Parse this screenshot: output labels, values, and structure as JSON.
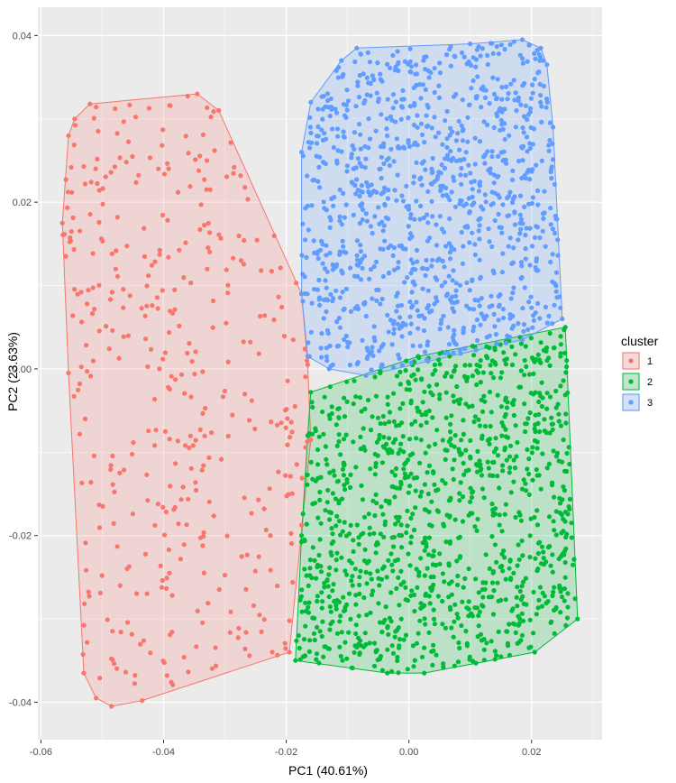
{
  "chart_data": {
    "type": "scatter",
    "title": "",
    "xlabel": "PC1 (40.61%)",
    "ylabel": "PC2 (23.63%)",
    "xlim": [
      -0.0605,
      0.0315
    ],
    "ylim": [
      -0.0445,
      0.0434
    ],
    "x_ticks": [
      -0.06,
      -0.04,
      -0.02,
      0.0,
      0.02
    ],
    "x_tick_labels": [
      "-0.06",
      "-0.04",
      "-0.02",
      "0.00",
      "0.02"
    ],
    "y_ticks": [
      -0.04,
      -0.02,
      0.0,
      0.02,
      0.04
    ],
    "y_tick_labels": [
      "-0.04",
      "-0.02",
      "0.00",
      "0.02",
      "0.04"
    ],
    "grid": true,
    "legend": {
      "title": "cluster",
      "position": "right",
      "entries": [
        "1",
        "2",
        "3"
      ]
    },
    "series": [
      {
        "name": "1",
        "color": "#F8766D",
        "count": 400,
        "hull": [
          [
            -0.0485,
            -0.0405
          ],
          [
            -0.0435,
            -0.0398
          ],
          [
            -0.0195,
            -0.034
          ],
          [
            -0.016,
            -0.0085
          ],
          [
            -0.0165,
            0.0005
          ],
          [
            -0.0175,
            0.009
          ],
          [
            -0.031,
            0.031
          ],
          [
            -0.0345,
            0.033
          ],
          [
            -0.052,
            0.0318
          ],
          [
            -0.0545,
            0.03
          ],
          [
            -0.0555,
            0.028
          ],
          [
            -0.0565,
            0.0175
          ],
          [
            -0.0555,
            -0.0005
          ],
          [
            -0.053,
            -0.0365
          ],
          [
            -0.051,
            -0.0395
          ]
        ]
      },
      {
        "name": "2",
        "color": "#00BA38",
        "count": 1150,
        "hull": [
          [
            -0.0185,
            -0.035
          ],
          [
            -0.0035,
            -0.0365
          ],
          [
            0.0025,
            -0.0365
          ],
          [
            0.0205,
            -0.034
          ],
          [
            0.0275,
            -0.03
          ],
          [
            0.0255,
            0.005
          ],
          [
            0.0015,
            0.0015
          ],
          [
            -0.016,
            -0.0028
          ],
          [
            -0.0165,
            -0.008
          ],
          [
            -0.0175,
            -0.02
          ]
        ]
      },
      {
        "name": "3",
        "color": "#619CFF",
        "count": 1050,
        "hull": [
          [
            -0.013,
            0.0
          ],
          [
            -0.007,
            -0.0008
          ],
          [
            0.0185,
            0.0035
          ],
          [
            0.025,
            0.006
          ],
          [
            0.0235,
            0.029
          ],
          [
            0.0225,
            0.0365
          ],
          [
            0.0215,
            0.0385
          ],
          [
            0.0185,
            0.0395
          ],
          [
            0.01,
            0.039
          ],
          [
            -0.0085,
            0.0385
          ],
          [
            -0.011,
            0.037
          ],
          [
            -0.016,
            0.032
          ],
          [
            -0.0175,
            0.026
          ],
          [
            -0.0175,
            0.009
          ],
          [
            -0.0165,
            0.0015
          ]
        ]
      }
    ]
  }
}
